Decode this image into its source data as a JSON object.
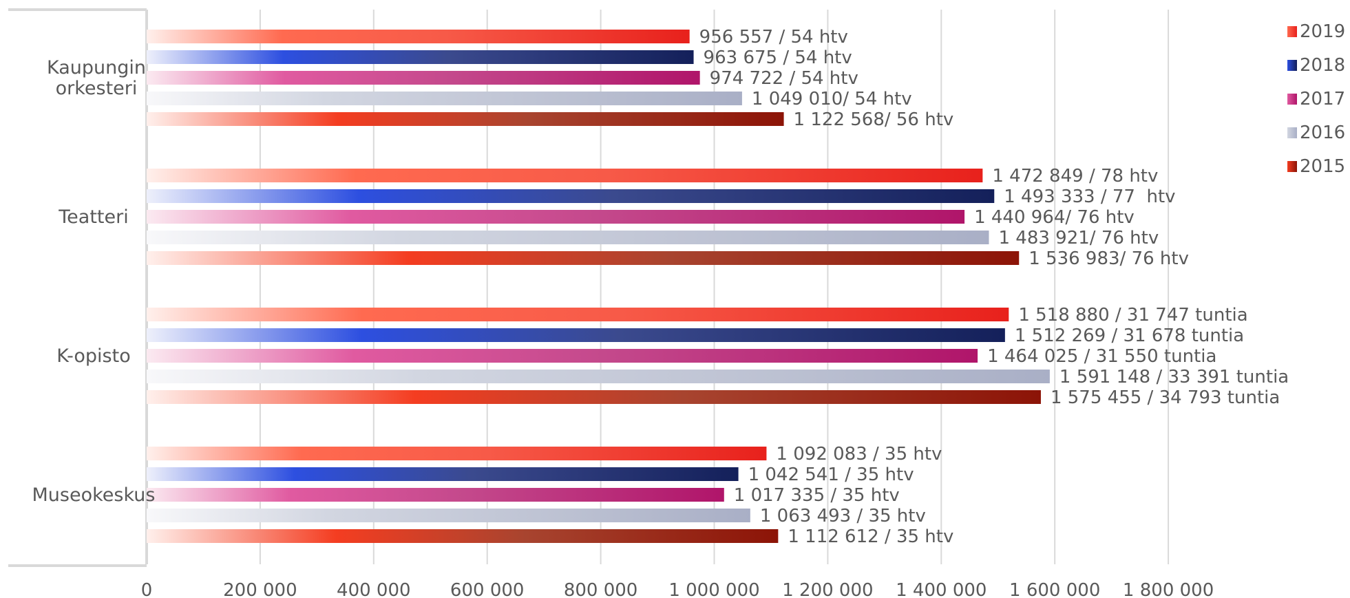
{
  "chart_data": {
    "type": "bar",
    "orientation": "horizontal",
    "categories": [
      "Kaupungin orkesteri",
      "Teatteri",
      "K-opisto",
      "Museokeskus"
    ],
    "xlim": [
      0,
      1800000
    ],
    "x_ticks": [
      0,
      200000,
      400000,
      600000,
      800000,
      1000000,
      1200000,
      1400000,
      1600000,
      1800000
    ],
    "x_tick_labels": [
      "0",
      "200 000",
      "400 000",
      "600 000",
      "800 000",
      "1 000 000",
      "1 200 000",
      "1 400 000",
      "1 600 000",
      "1 800 000"
    ],
    "grid": true,
    "legend_position": "right",
    "series": [
      {
        "name": "2019",
        "color": "#e8211c",
        "values": [
          956557,
          1472849,
          1518880,
          1092083
        ],
        "labels": [
          "956 557 / 54 htv",
          "1 472 849 / 78 htv",
          "1 518 880 / 31 747 tuntia",
          "1 092 083 / 35 htv"
        ]
      },
      {
        "name": "2018",
        "color": "#172366",
        "values": [
          963675,
          1493333,
          1512269,
          1042541
        ],
        "labels": [
          "963 675 / 54 htv",
          "1 493 333 / 77  htv",
          "1 512 269 / 31 678 tuntia",
          "1 042 541 / 35 htv"
        ]
      },
      {
        "name": "2017",
        "color": "#b2186a",
        "values": [
          974722,
          1440964,
          1464025,
          1017335
        ],
        "labels": [
          "974 722 / 54 htv",
          "1 440 964/ 76 htv",
          "1 464 025 / 31 550 tuntia",
          "1 017 335 / 35 htv"
        ]
      },
      {
        "name": "2016",
        "color": "#a9afc6",
        "values": [
          1049010,
          1483921,
          1591148,
          1063493
        ],
        "labels": [
          "1 049 010/ 54 htv",
          "1 483 921/ 76 htv",
          "1 591 148 / 33 391 tuntia",
          "1 063 493 / 35 htv"
        ]
      },
      {
        "name": "2015",
        "color": "#8c1407",
        "values": [
          1122568,
          1536983,
          1575455,
          1112612
        ],
        "labels": [
          "1 122 568/ 56 htv",
          "1 536 983/ 76 htv",
          "1 575 455 / 34 793 tuntia",
          "1 112 612 / 35 htv"
        ]
      }
    ]
  }
}
